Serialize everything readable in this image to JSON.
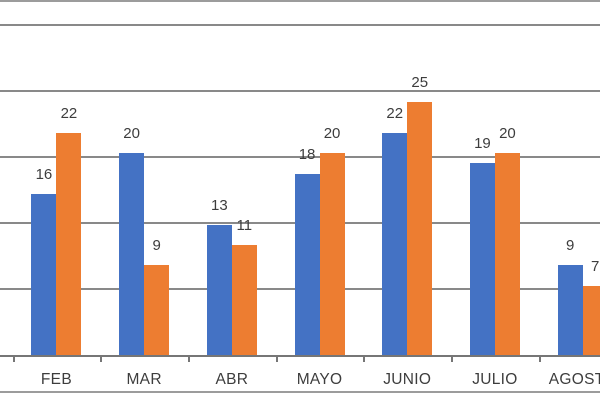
{
  "chart_data": {
    "type": "bar",
    "title": "",
    "xlabel": "",
    "ylabel": "",
    "categories": [
      "FEB",
      "MAR",
      "ABR",
      "MAYO",
      "JUNIO",
      "JULIO",
      "AGOSTO"
    ],
    "series": [
      {
        "name": "blue",
        "color": "#4472C4",
        "values": [
          16,
          20,
          13,
          18,
          22,
          19,
          9
        ]
      },
      {
        "name": "orange",
        "color": "#ED7D31",
        "values": [
          22,
          9,
          11,
          20,
          25,
          20,
          7
        ]
      }
    ],
    "data_labels_visible": true,
    "legend_position": "none",
    "y_axis_labels_visible": false,
    "grid": "horizontal"
  },
  "colors": {
    "background": "#FFFFFF",
    "gridline": "#898989",
    "axis": "#767676",
    "tick": "#767676",
    "chart_border": "#9C9C9C",
    "label_text": "#3D3D3D"
  }
}
